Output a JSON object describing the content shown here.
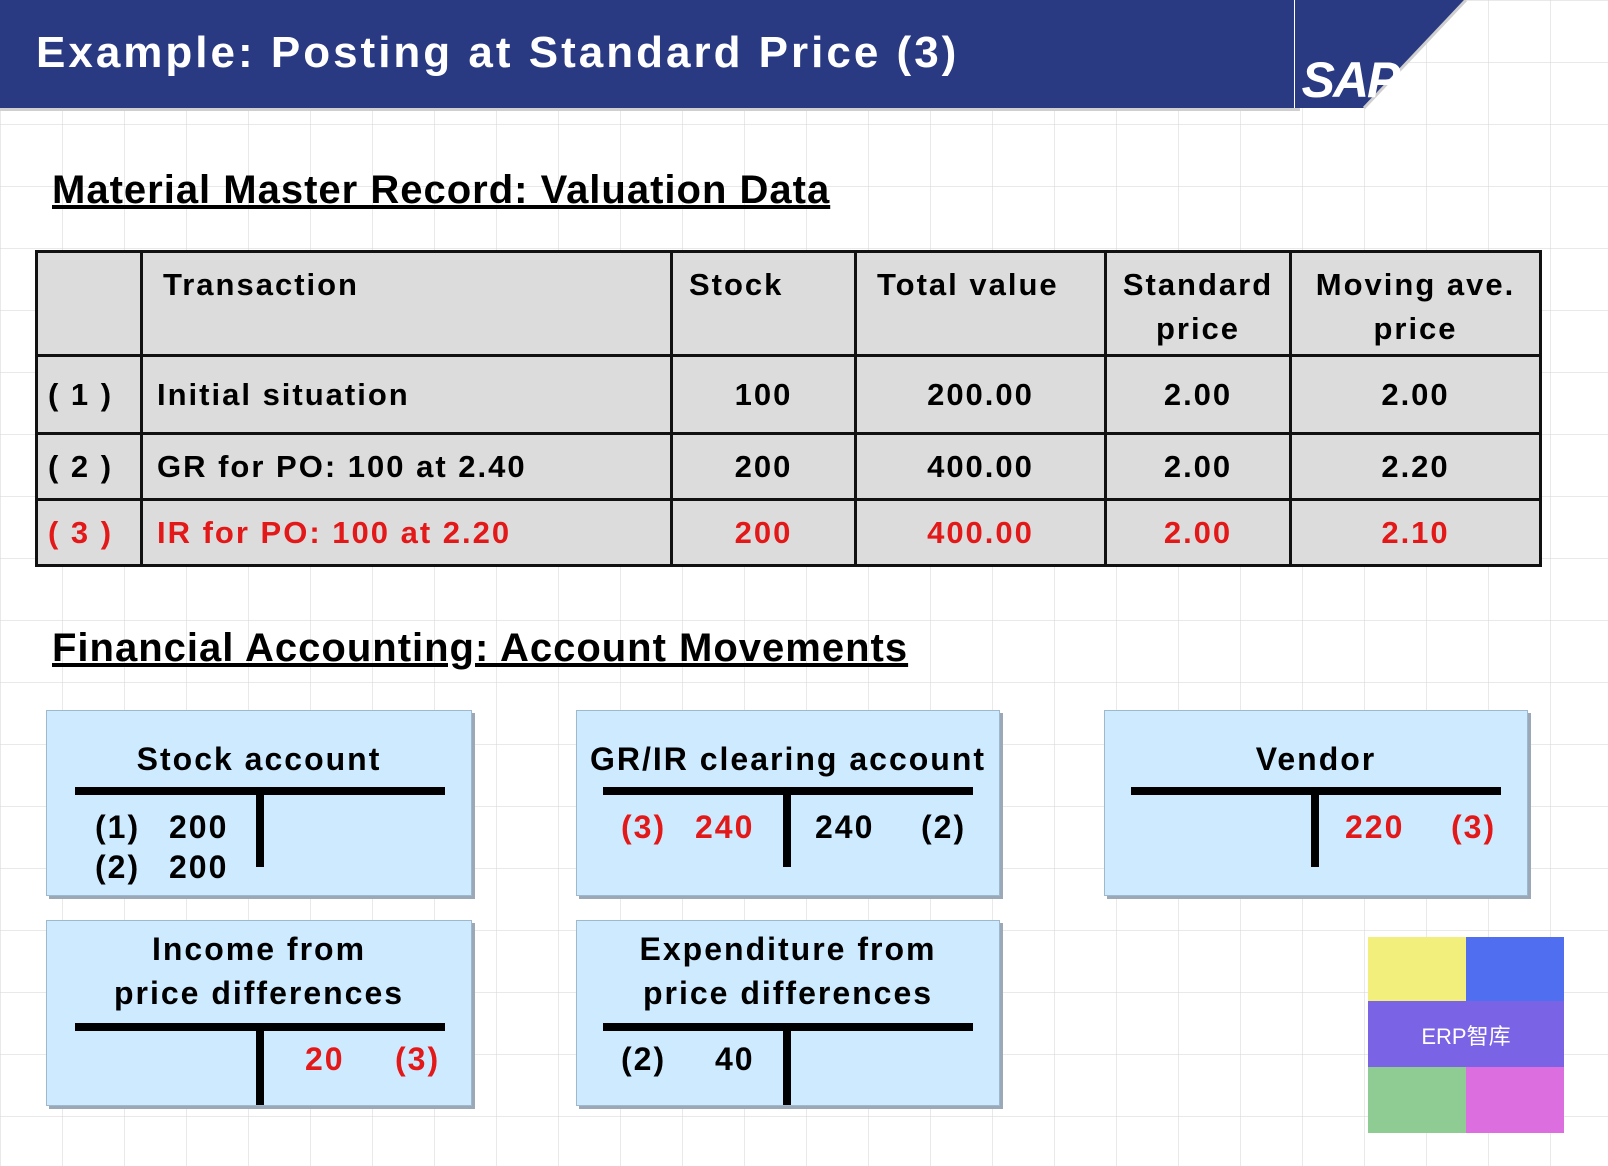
{
  "header": {
    "title": "Example: Posting at Standard Price (3)",
    "logo": "SAP",
    "color": "#2a3a82"
  },
  "section1": {
    "title": "Material Master Record: Valuation Data"
  },
  "table": {
    "headers": [
      "",
      "Transaction",
      "Stock",
      "Total value",
      "Standard price",
      "Moving ave. price"
    ],
    "header_lines": {
      "standard": [
        "Standard",
        "price"
      ],
      "moving": [
        "Moving ave.",
        "price"
      ]
    },
    "rows": [
      {
        "num": "( 1 )",
        "transaction": "Initial situation",
        "stock": "100",
        "total": "200.00",
        "standard": "2.00",
        "moving": "2.00"
      },
      {
        "num": "( 2 )",
        "transaction": "GR for PO: 100 at 2.40",
        "stock": "200",
        "total": "400.00",
        "standard": "2.00",
        "moving": "2.20"
      },
      {
        "num": "( 3 )",
        "transaction": "IR for PO: 100 at 2.20",
        "stock": "200",
        "total": "400.00",
        "standard": "2.00",
        "moving": "2.10"
      }
    ],
    "highlight_color": "#e31818"
  },
  "section2": {
    "title": "Financial Accounting: Account Movements"
  },
  "accounts": {
    "stock": {
      "title": "Stock account",
      "debit": [
        {
          "ref": "(1)",
          "amount": "200"
        },
        {
          "ref": "(2)",
          "amount": "200"
        }
      ]
    },
    "grir": {
      "title": "GR/IR clearing account",
      "debit": {
        "ref": "(3)",
        "amount": "240"
      },
      "credit": {
        "amount": "240",
        "ref": "(2)"
      }
    },
    "vendor": {
      "title": "Vendor",
      "credit": {
        "amount": "220",
        "ref": "(3)"
      }
    },
    "income": {
      "title_lines": [
        "Income from",
        "price differences"
      ],
      "credit": {
        "amount": "20",
        "ref": "(3)"
      }
    },
    "expenditure": {
      "title_lines": [
        "Expenditure from",
        "price differences"
      ],
      "debit": {
        "ref": "(2)",
        "amount": "40"
      }
    }
  },
  "watermark": {
    "text": "ERP智库",
    "colors": [
      "#f3ef7c",
      "#4f6ef0",
      "#7a63e4",
      "#8fcc94",
      "#dc6ee0"
    ]
  }
}
